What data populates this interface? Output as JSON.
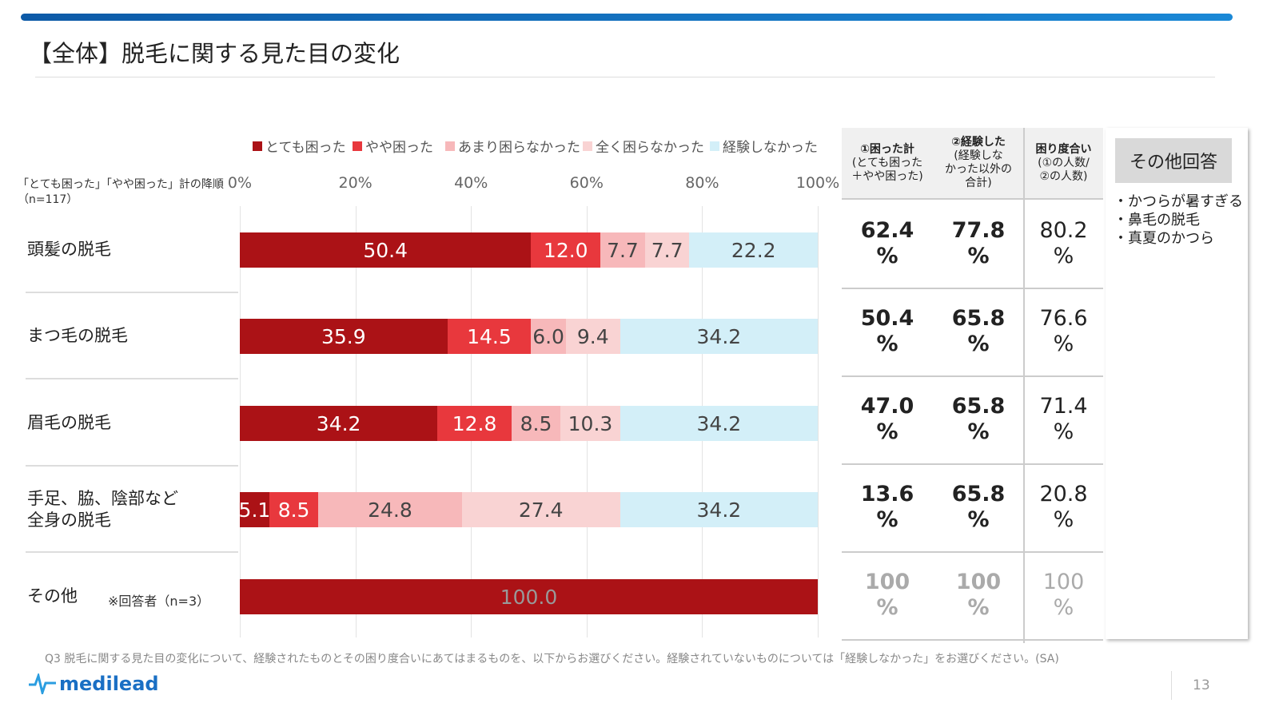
{
  "title": "【全体】脱毛に関する見た目の変化",
  "sort_note": "「とても困った」「やや困った」計の降順",
  "n_note": "（n=117）",
  "chart_data": {
    "type": "bar",
    "orientation": "horizontal",
    "stacked": true,
    "xlim": [
      0,
      100
    ],
    "ticks": [
      "0%",
      "20%",
      "40%",
      "60%",
      "80%",
      "100%"
    ],
    "grid": true,
    "legend_position": "top",
    "series": [
      {
        "name": "とても困った",
        "color": "#ab1216"
      },
      {
        "name": "やや困った",
        "color": "#e8383d"
      },
      {
        "name": "あまり困らなかった",
        "color": "#f7b8ba"
      },
      {
        "name": "全く困らなかった",
        "color": "#f9d3d3"
      },
      {
        "name": "経験しなかった",
        "color": "#d3eff8"
      }
    ],
    "categories": [
      {
        "label": "頭髪の脱毛",
        "values": [
          50.4,
          12.0,
          7.7,
          7.7,
          22.2
        ]
      },
      {
        "label": "まつ毛の脱毛",
        "values": [
          35.9,
          14.5,
          6.0,
          9.4,
          34.2
        ]
      },
      {
        "label": "眉毛の脱毛",
        "values": [
          34.2,
          12.8,
          8.5,
          10.3,
          34.2
        ]
      },
      {
        "label": "手足、脇、陰部など\n全身の脱毛",
        "values": [
          5.1,
          8.5,
          24.8,
          27.4,
          34.2
        ]
      },
      {
        "label": "その他",
        "note": "※回答者（n=3）",
        "values": [
          100.0,
          0,
          0,
          0,
          0
        ]
      }
    ]
  },
  "table": {
    "headers": [
      {
        "bold": "①困った計",
        "sub": "(とても困った\n＋やや困った)"
      },
      {
        "bold": "②経験した",
        "sub": "(経験しな\nかった以外の\n合計)"
      },
      {
        "bold": "困り度合い",
        "sub": "(①の人数/\n②の人数)"
      }
    ],
    "rows": [
      [
        "62.4",
        "77.8",
        "80.2"
      ],
      [
        "50.4",
        "65.8",
        "76.6"
      ],
      [
        "47.0",
        "65.8",
        "71.4"
      ],
      [
        "13.6",
        "65.8",
        "20.8"
      ],
      [
        "100",
        "100",
        "100"
      ]
    ],
    "unit": "%"
  },
  "other_answers": {
    "title": "その他回答",
    "items": [
      "・かつらが暑すぎる",
      "・鼻毛の脱毛",
      "・真夏のかつら"
    ]
  },
  "footnote": "Q3 脱毛に関する見た目の変化について、経験されたものとその困り度合いにあてはまるものを、以下からお選びください。経験されていないものについては「経験しなかった」をお選びください。(SA)",
  "logo": "medilead",
  "page_number": "13"
}
